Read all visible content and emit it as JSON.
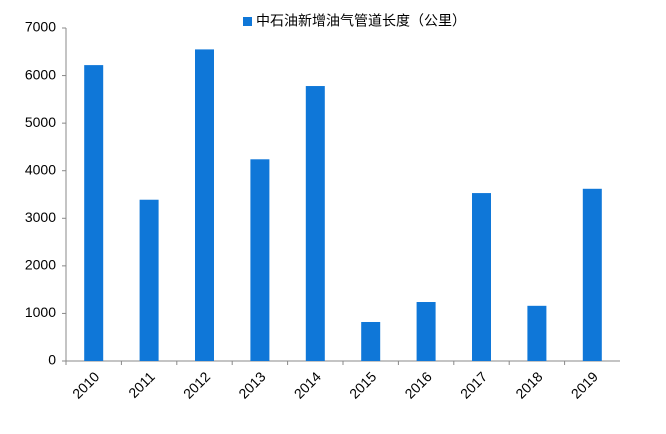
{
  "chart_data": {
    "type": "bar",
    "series": [
      {
        "name": "中石油新增油气管道长度（公里）",
        "color": "#0f77d8",
        "values": [
          6220,
          3390,
          6550,
          4240,
          5780,
          820,
          1240,
          3530,
          1160,
          3620
        ]
      }
    ],
    "categories": [
      "2010",
      "2011",
      "2012",
      "2013",
      "2014",
      "2015",
      "2016",
      "2017",
      "2018",
      "2019"
    ],
    "ylim": [
      0,
      7000
    ],
    "yticks": [
      0,
      1000,
      2000,
      3000,
      4000,
      5000,
      6000,
      7000
    ],
    "legend": "top"
  }
}
